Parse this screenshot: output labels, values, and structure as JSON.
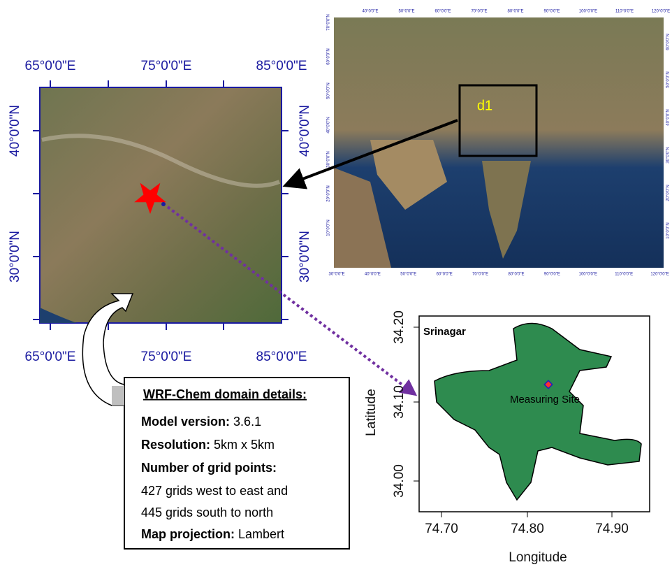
{
  "main_map": {
    "top_labels": [
      "65°0'0\"E",
      "75°0'0\"E",
      "85°0'0\"E"
    ],
    "bottom_labels": [
      "65°0'0\"E",
      "75°0'0\"E",
      "85°0'0\"E"
    ],
    "left_labels": [
      "40°0'0\"N",
      "30°0'0\"N"
    ],
    "right_labels": [
      "40°0'0\"N",
      "30°0'0\"N"
    ]
  },
  "overview_map": {
    "top_labels": [
      "40°0'0\"E",
      "50°0'0\"E",
      "60°0'0\"E",
      "70°0'0\"E",
      "80°0'0\"E",
      "90°0'0\"E",
      "100°0'0\"E",
      "110°0'0\"E",
      "120°0'0\"E"
    ],
    "bottom_labels": [
      "30°0'0\"E",
      "40°0'0\"E",
      "50°0'0\"E",
      "60°0'0\"E",
      "70°0'0\"E",
      "80°0'0\"E",
      "90°0'0\"E",
      "100°0'0\"E",
      "110°0'0\"E",
      "120°0'0\"E"
    ],
    "left_labels": [
      "70°0'0\"N",
      "60°0'0\"N",
      "50°0'0\"N",
      "40°0'0\"N",
      "30°0'0\"N",
      "20°0'0\"N",
      "10°0'0\"N"
    ],
    "right_labels": [
      "60°0'0\"N",
      "50°0'0\"N",
      "40°0'0\"N",
      "30°0'0\"N",
      "20°0'0\"N",
      "10°0'0\"N"
    ],
    "domain_label": "d1"
  },
  "site_map": {
    "title": "Srinagar",
    "site_label": "Measuring Site",
    "x_label": "Longitude",
    "y_label": "Latitude",
    "x_ticks": [
      "74.70",
      "74.80",
      "74.90"
    ],
    "y_ticks": [
      "34.00",
      "34.10",
      "34.20"
    ]
  },
  "details": {
    "heading": "WRF-Chem domain details:",
    "items": [
      {
        "label": "Model version:",
        "value": "3.6.1"
      },
      {
        "label": "Resolution:",
        "value": "5km x 5km"
      },
      {
        "label": "Number of grid points:",
        "lines": [
          "427 grids west to east and",
          "445 grids south to north"
        ]
      },
      {
        "label": "Map projection:",
        "value": "Lambert"
      }
    ]
  }
}
